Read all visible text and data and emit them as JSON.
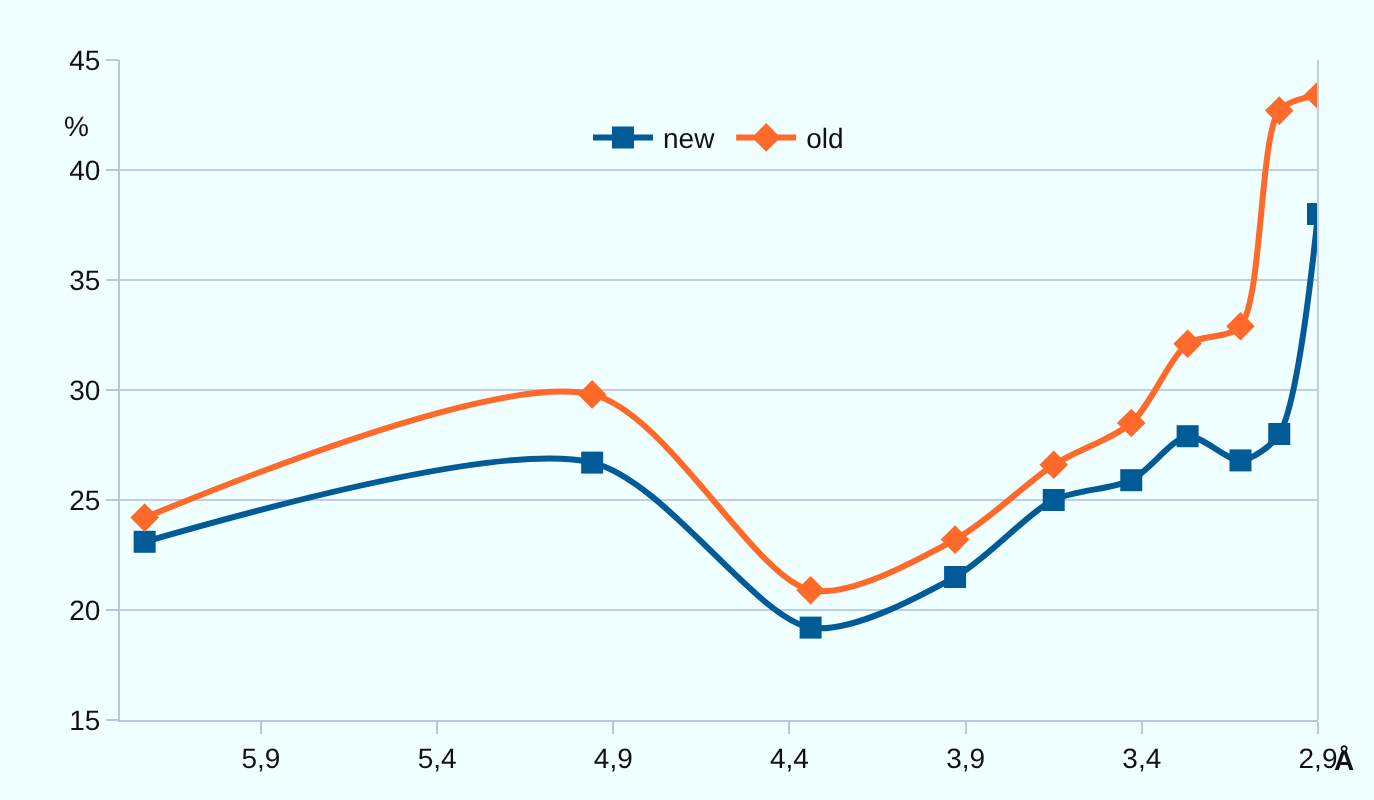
{
  "chart_data": {
    "type": "line",
    "xlabel": "Å",
    "ylabel": "%",
    "x": [
      6.23,
      4.96,
      4.34,
      3.93,
      3.65,
      3.43,
      3.27,
      3.12,
      3.01,
      2.9
    ],
    "series": [
      {
        "name": "new",
        "color": "#005b96",
        "marker": "square",
        "values": [
          23.1,
          26.7,
          19.2,
          21.5,
          25.0,
          25.9,
          27.9,
          26.8,
          28.0,
          38.0
        ]
      },
      {
        "name": "old",
        "color": "#ff6a2a",
        "marker": "diamond",
        "values": [
          24.2,
          29.8,
          20.9,
          23.2,
          26.6,
          28.5,
          32.1,
          32.9,
          42.7,
          43.4
        ]
      }
    ],
    "xlim": [
      6.3,
      2.9
    ],
    "xticks": [
      {
        "value": 5.9,
        "label": "5,9"
      },
      {
        "value": 5.4,
        "label": "5,4"
      },
      {
        "value": 4.9,
        "label": "4,9"
      },
      {
        "value": 4.4,
        "label": "4,4"
      },
      {
        "value": 3.9,
        "label": "3,9"
      },
      {
        "value": 3.4,
        "label": "3,4"
      },
      {
        "value": 2.9,
        "label": "2,9"
      }
    ],
    "ylim": [
      15,
      45
    ],
    "yticks": [
      15,
      20,
      25,
      30,
      35,
      40,
      45
    ],
    "grid": "y",
    "legend": "top",
    "line_style": "solid"
  }
}
